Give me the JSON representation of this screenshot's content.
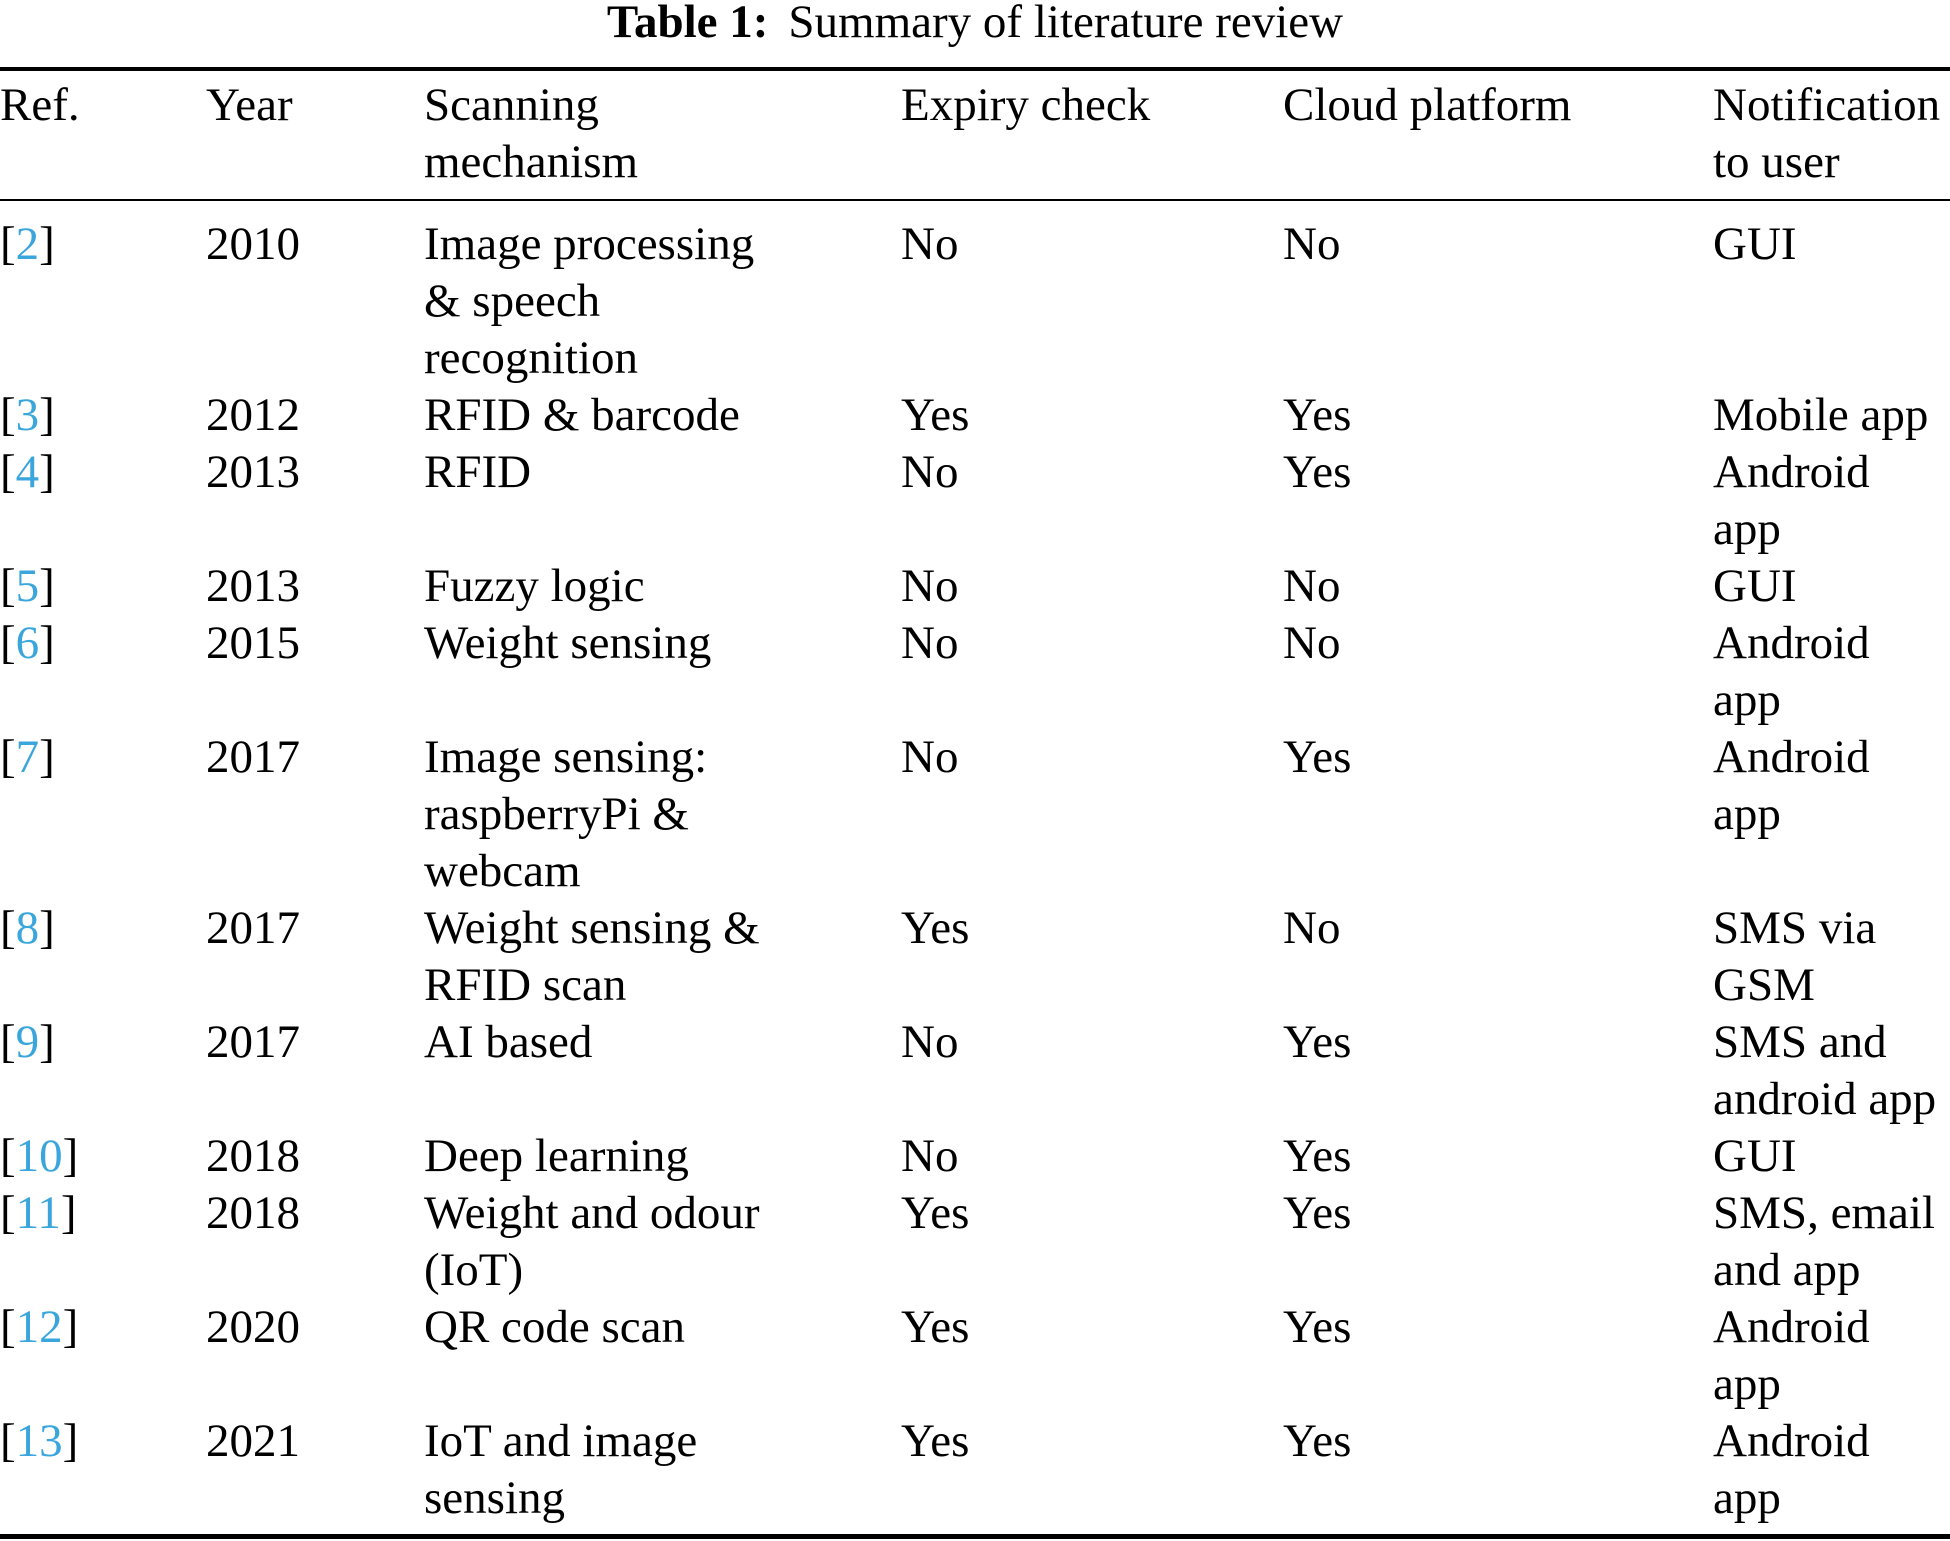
{
  "caption": {
    "label": "Table 1:",
    "text": "Summary of literature review"
  },
  "colors": {
    "reference_link": "#3aa6dc",
    "text": "#000000",
    "rule": "#000000"
  },
  "table": {
    "ref_bracket_open": "[",
    "ref_bracket_close": "]",
    "columns": [
      {
        "key": "ref",
        "label": "Ref."
      },
      {
        "key": "year",
        "label": "Year"
      },
      {
        "key": "mechanism",
        "label": "Scanning\nmechanism"
      },
      {
        "key": "expiry",
        "label": "Expiry check"
      },
      {
        "key": "cloud",
        "label": "Cloud platform"
      },
      {
        "key": "notification",
        "label": "Notification\nto user"
      }
    ],
    "rows": [
      {
        "ref": "2",
        "year": "2010",
        "mechanism": "Image processing\n& speech\nrecognition",
        "expiry": "No",
        "cloud": "No",
        "notification": "GUI"
      },
      {
        "ref": "3",
        "year": "2012",
        "mechanism": "RFID & barcode",
        "expiry": "Yes",
        "cloud": "Yes",
        "notification": "Mobile app"
      },
      {
        "ref": "4",
        "year": "2013",
        "mechanism": "RFID",
        "expiry": "No",
        "cloud": "Yes",
        "notification": "Android\napp"
      },
      {
        "ref": "5",
        "year": "2013",
        "mechanism": "Fuzzy logic",
        "expiry": "No",
        "cloud": "No",
        "notification": "GUI"
      },
      {
        "ref": "6",
        "year": "2015",
        "mechanism": "Weight sensing",
        "expiry": "No",
        "cloud": "No",
        "notification": "Android\napp"
      },
      {
        "ref": "7",
        "year": "2017",
        "mechanism": "Image sensing:\nraspberryPi &\nwebcam",
        "expiry": "No",
        "cloud": "Yes",
        "notification": "Android\napp"
      },
      {
        "ref": "8",
        "year": "2017",
        "mechanism": "Weight sensing &\nRFID scan",
        "expiry": "Yes",
        "cloud": "No",
        "notification": "SMS via\nGSM"
      },
      {
        "ref": "9",
        "year": "2017",
        "mechanism": "AI based",
        "expiry": "No",
        "cloud": "Yes",
        "notification": "SMS and\nandroid app"
      },
      {
        "ref": "10",
        "year": "2018",
        "mechanism": "Deep learning",
        "expiry": "No",
        "cloud": "Yes",
        "notification": "GUI"
      },
      {
        "ref": "11",
        "year": "2018",
        "mechanism": "Weight and odour\n(IoT)",
        "expiry": "Yes",
        "cloud": "Yes",
        "notification": "SMS, email\nand app"
      },
      {
        "ref": "12",
        "year": "2020",
        "mechanism": "QR code scan",
        "expiry": "Yes",
        "cloud": "Yes",
        "notification": "Android\napp"
      },
      {
        "ref": "13",
        "year": "2021",
        "mechanism": "IoT and image\nsensing",
        "expiry": "Yes",
        "cloud": "Yes",
        "notification": "Android\napp"
      }
    ]
  }
}
